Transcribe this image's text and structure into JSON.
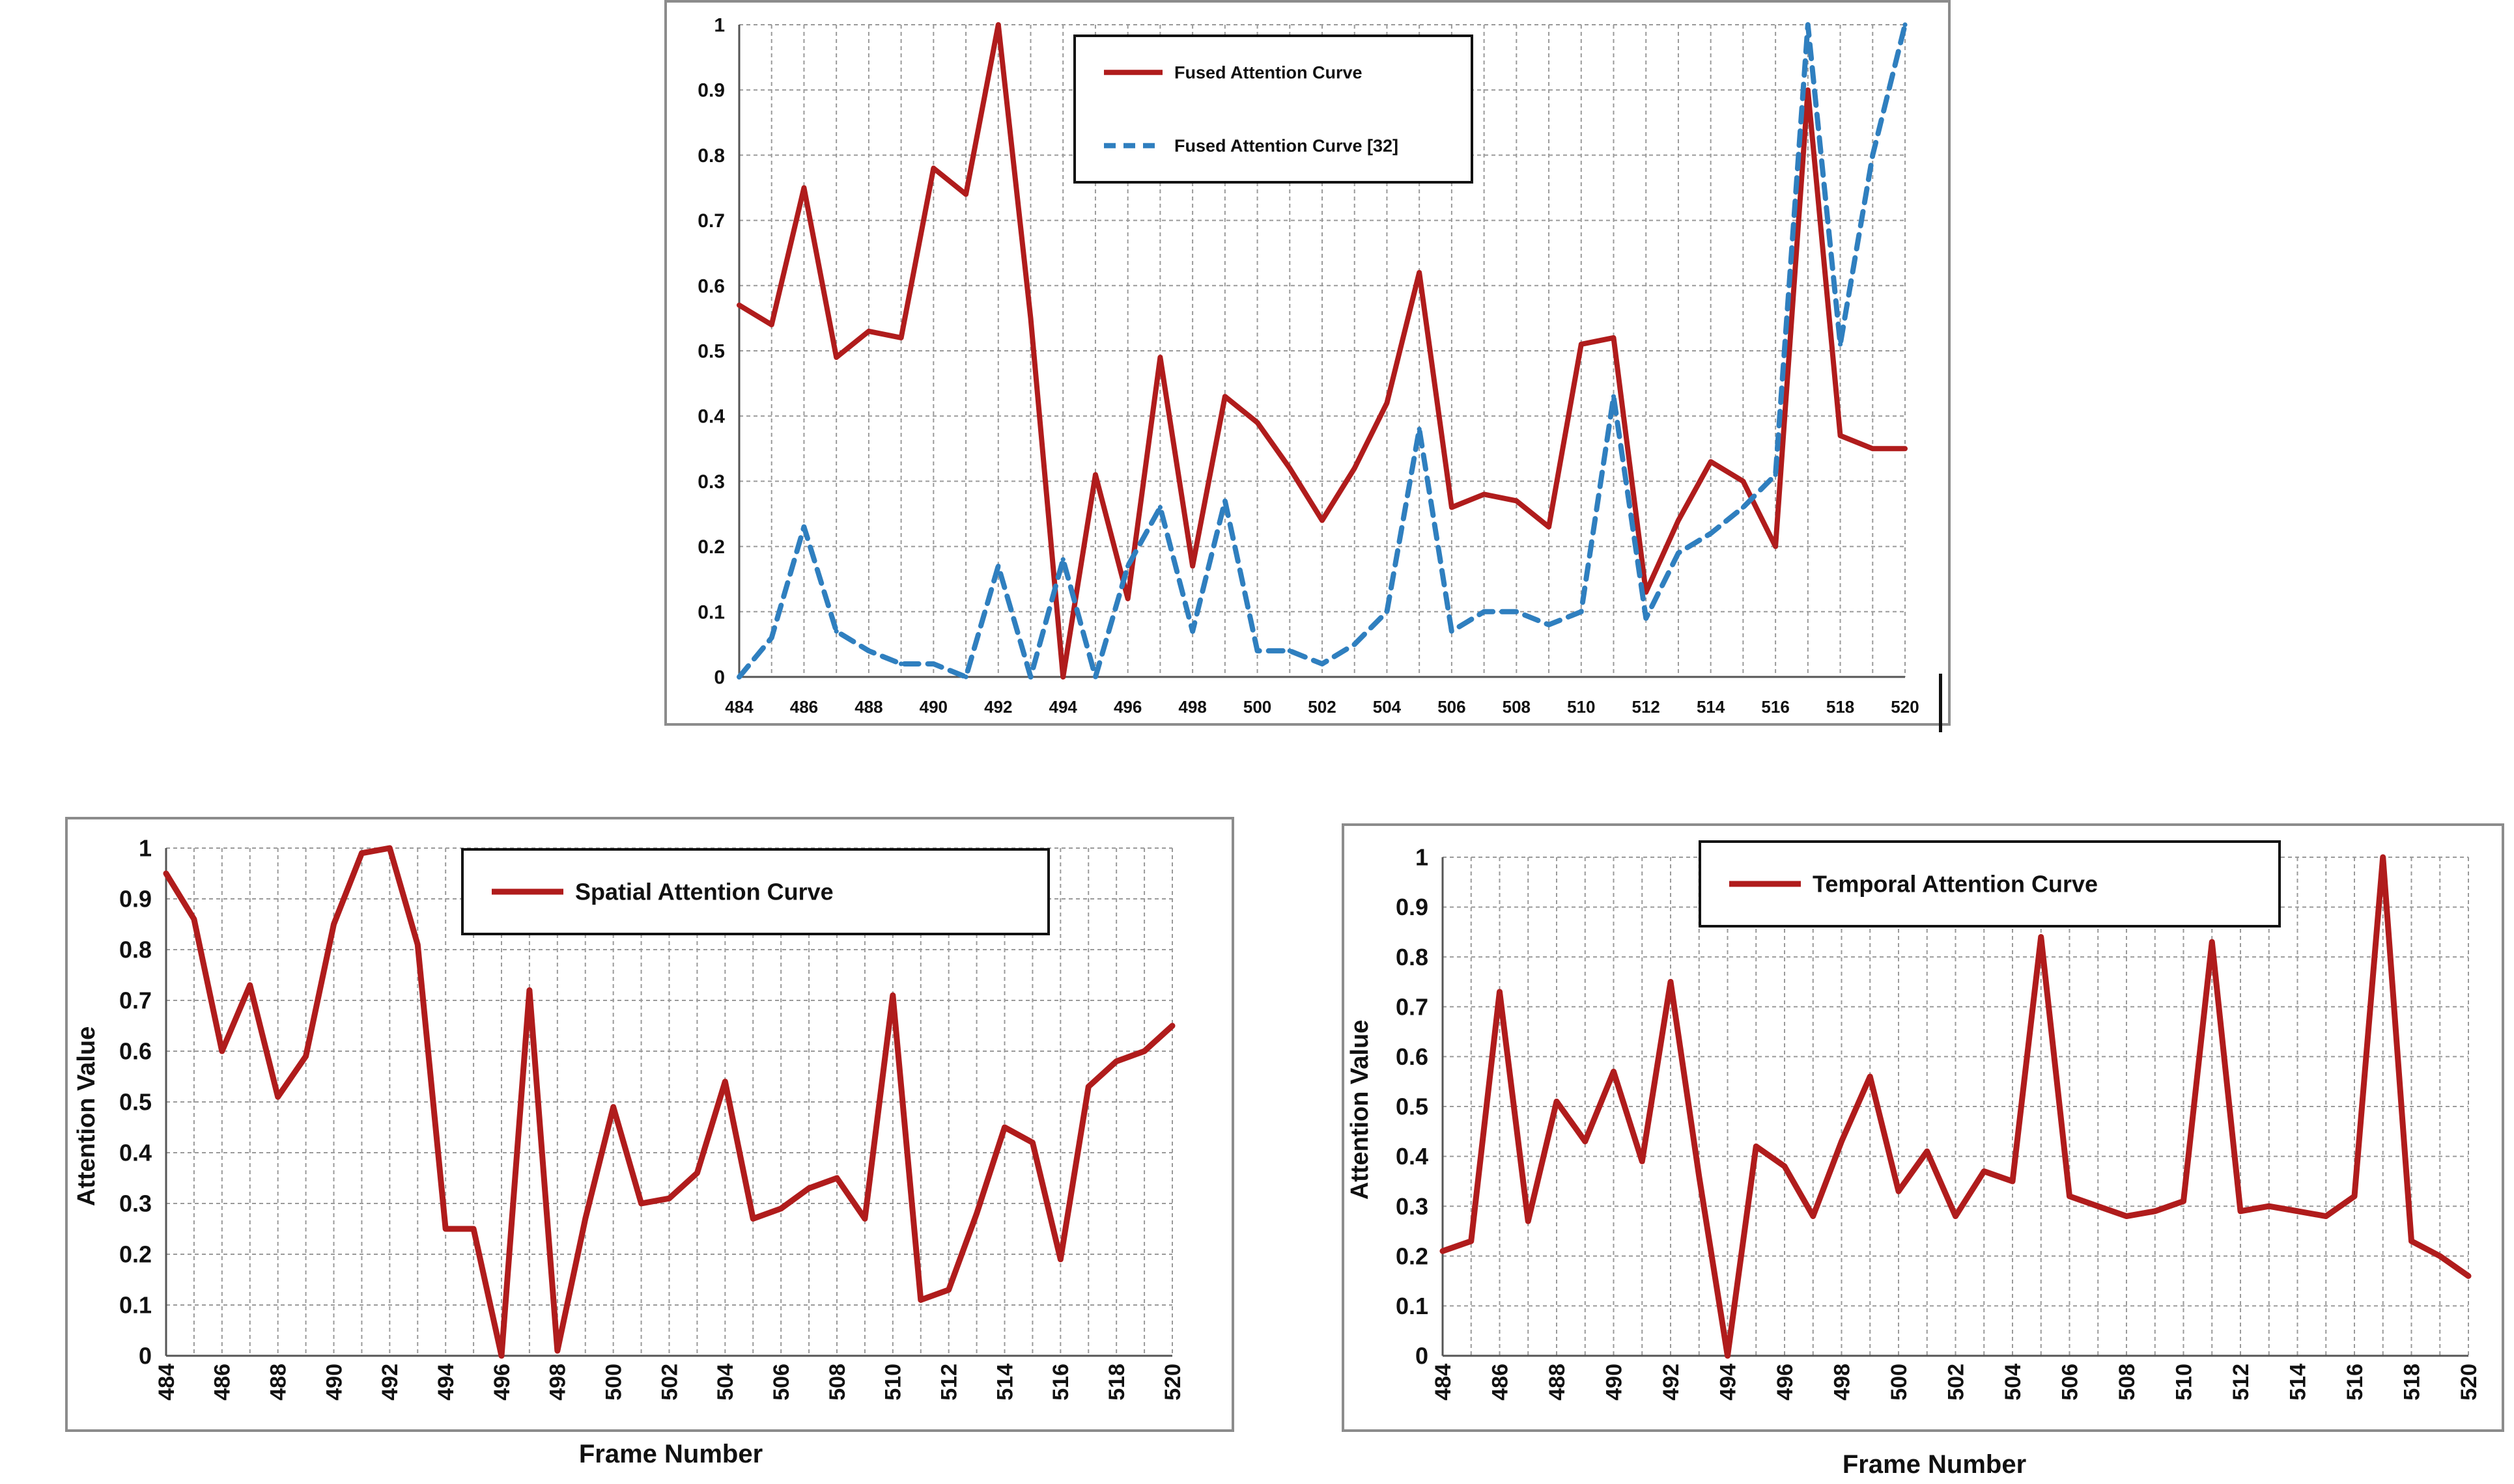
{
  "chart_data": [
    {
      "id": "fused",
      "type": "line",
      "title": "",
      "xlabel": "",
      "ylabel": "",
      "ylim": [
        0,
        1
      ],
      "yticks": [
        "0",
        "0.1",
        "0.2",
        "0.3",
        "0.4",
        "0.5",
        "0.6",
        "0.7",
        "0.8",
        "0.9",
        "1"
      ],
      "x_start": 484,
      "x_end": 520,
      "xticks": [
        "484",
        "486",
        "488",
        "490",
        "492",
        "494",
        "496",
        "498",
        "500",
        "502",
        "504",
        "506",
        "508",
        "510",
        "512",
        "514",
        "516",
        "518",
        "520"
      ],
      "grid": true,
      "legend_position": "top-center",
      "series": [
        {
          "name": "Fused Attention Curve",
          "color": "#b01c1c",
          "style": "solid",
          "values": [
            0.57,
            0.54,
            0.75,
            0.49,
            0.53,
            0.52,
            0.78,
            0.74,
            1.0,
            0.55,
            0.0,
            0.31,
            0.12,
            0.49,
            0.17,
            0.43,
            0.39,
            0.32,
            0.24,
            0.32,
            0.42,
            0.62,
            0.26,
            0.28,
            0.27,
            0.23,
            0.51,
            0.52,
            0.13,
            0.24,
            0.33,
            0.3,
            0.2,
            0.9,
            0.37,
            0.35,
            0.35
          ]
        },
        {
          "name": "Fused Attention Curve [32]",
          "color": "#2f7fbf",
          "style": "dashed",
          "values": [
            0.0,
            0.06,
            0.23,
            0.07,
            0.04,
            0.02,
            0.02,
            0.0,
            0.17,
            0.0,
            0.18,
            0.0,
            0.17,
            0.26,
            0.07,
            0.27,
            0.04,
            0.04,
            0.02,
            0.05,
            0.1,
            0.38,
            0.07,
            0.1,
            0.1,
            0.08,
            0.1,
            0.43,
            0.09,
            0.19,
            0.22,
            0.26,
            0.31,
            1.0,
            0.51,
            0.8,
            1.0
          ]
        }
      ]
    },
    {
      "id": "spatial",
      "type": "line",
      "title": "",
      "xlabel": "Frame Number",
      "ylabel": "Attention Value",
      "ylim": [
        0,
        1
      ],
      "yticks": [
        "0",
        "0.1",
        "0.2",
        "0.3",
        "0.4",
        "0.5",
        "0.6",
        "0.7",
        "0.8",
        "0.9",
        "1"
      ],
      "x_start": 484,
      "x_end": 520,
      "xticks": [
        "484",
        "486",
        "488",
        "490",
        "492",
        "494",
        "496",
        "498",
        "500",
        "502",
        "504",
        "506",
        "508",
        "510",
        "512",
        "514",
        "516",
        "518",
        "520"
      ],
      "grid": true,
      "legend_position": "top-right",
      "series": [
        {
          "name": "Spatial Attention Curve",
          "color": "#b01c1c",
          "style": "solid",
          "values": [
            0.95,
            0.86,
            0.6,
            0.73,
            0.51,
            0.59,
            0.85,
            0.99,
            1.0,
            0.81,
            0.25,
            0.25,
            0.0,
            0.72,
            0.01,
            0.27,
            0.49,
            0.3,
            0.31,
            0.36,
            0.54,
            0.27,
            0.29,
            0.33,
            0.35,
            0.27,
            0.71,
            0.11,
            0.13,
            0.28,
            0.45,
            0.42,
            0.19,
            0.53,
            0.58,
            0.6,
            0.65
          ]
        }
      ]
    },
    {
      "id": "temporal",
      "type": "line",
      "title": "",
      "xlabel": "Frame Number",
      "ylabel": "Attention Value",
      "ylim": [
        0,
        1
      ],
      "yticks": [
        "0",
        "0.1",
        "0.2",
        "0.3",
        "0.4",
        "0.5",
        "0.6",
        "0.7",
        "0.8",
        "0.9",
        "1"
      ],
      "x_start": 484,
      "x_end": 520,
      "xticks": [
        "484",
        "486",
        "488",
        "490",
        "492",
        "494",
        "496",
        "498",
        "500",
        "502",
        "504",
        "506",
        "508",
        "510",
        "512",
        "514",
        "516",
        "518",
        "520"
      ],
      "grid": true,
      "legend_position": "top-center",
      "series": [
        {
          "name": "Temporal Attention Curve",
          "color": "#b01c1c",
          "style": "solid",
          "values": [
            0.21,
            0.23,
            0.73,
            0.27,
            0.51,
            0.43,
            0.57,
            0.39,
            0.75,
            0.36,
            0.0,
            0.42,
            0.38,
            0.28,
            0.43,
            0.56,
            0.33,
            0.41,
            0.28,
            0.37,
            0.35,
            0.84,
            0.32,
            0.3,
            0.28,
            0.29,
            0.31,
            0.83,
            0.29,
            0.3,
            0.29,
            0.28,
            0.32,
            1.0,
            0.23,
            0.2,
            0.16
          ]
        }
      ]
    }
  ]
}
